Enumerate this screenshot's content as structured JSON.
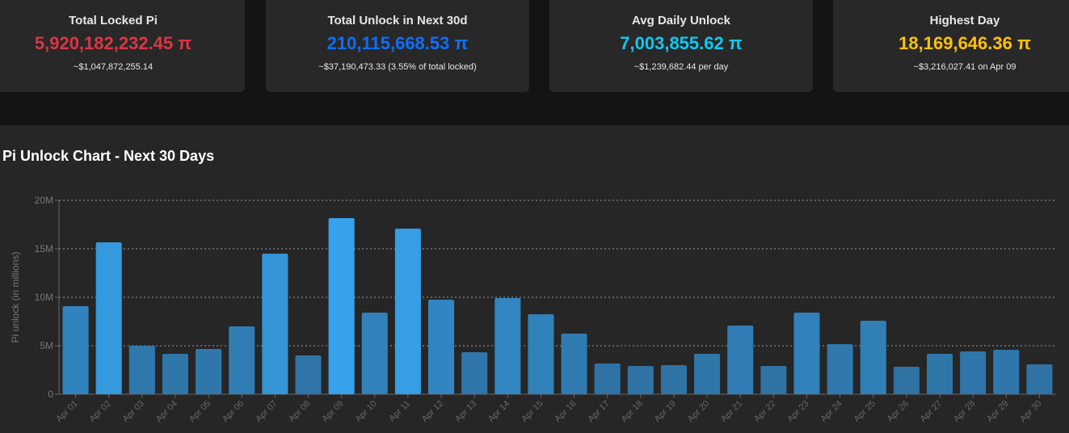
{
  "cards": [
    {
      "title": "Total Locked Pi",
      "value": "5,920,182,232.45 π",
      "sub": "~$1,047,872,255.14",
      "color": "#dc3545"
    },
    {
      "title": "Total Unlock in Next 30d",
      "value": "210,115,668.53 π",
      "sub": "~$37,190,473.33 (3.55% of total locked)",
      "color": "#0d6efd"
    },
    {
      "title": "Avg Daily Unlock",
      "value": "7,003,855.62 π",
      "sub": "~$1,239,682.44 per day",
      "color": "#0dcaf0"
    },
    {
      "title": "Highest Day",
      "value": "18,169,646.36 π",
      "sub": "~$3,216,027.41 on Apr 09",
      "color": "#ffc107"
    }
  ],
  "chart_data": {
    "type": "bar",
    "title": "Pi Unlock Chart - Next 30 Days",
    "xlabel": "",
    "ylabel": "Pi unlock (in millions)",
    "ylim": [
      0,
      20000000
    ],
    "yticks": [
      "0",
      "5M",
      "10M",
      "15M",
      "20M"
    ],
    "grid": true,
    "categories": [
      "Apr 01",
      "Apr 02",
      "Apr 03",
      "Apr 04",
      "Apr 05",
      "Apr 06",
      "Apr 07",
      "Apr 08",
      "Apr 09",
      "Apr 10",
      "Apr 11",
      "Apr 12",
      "Apr 13",
      "Apr 14",
      "Apr 15",
      "Apr 16",
      "Apr 17",
      "Apr 18",
      "Apr 19",
      "Apr 20",
      "Apr 21",
      "Apr 22",
      "Apr 23",
      "Apr 24",
      "Apr 25",
      "Apr 26",
      "Apr 27",
      "Apr 28",
      "Apr 29",
      "Apr 30"
    ],
    "values": [
      9080000,
      15670000,
      5000000,
      4170000,
      4670000,
      7000000,
      14500000,
      4000000,
      18169646,
      8420000,
      17080000,
      9750000,
      4330000,
      9920000,
      8250000,
      6250000,
      3170000,
      2920000,
      3000000,
      4170000,
      7080000,
      2920000,
      8420000,
      5170000,
      7580000,
      2830000,
      4170000,
      4420000,
      4580000,
      3080000
    ],
    "bar_color": "#36a2eb"
  }
}
